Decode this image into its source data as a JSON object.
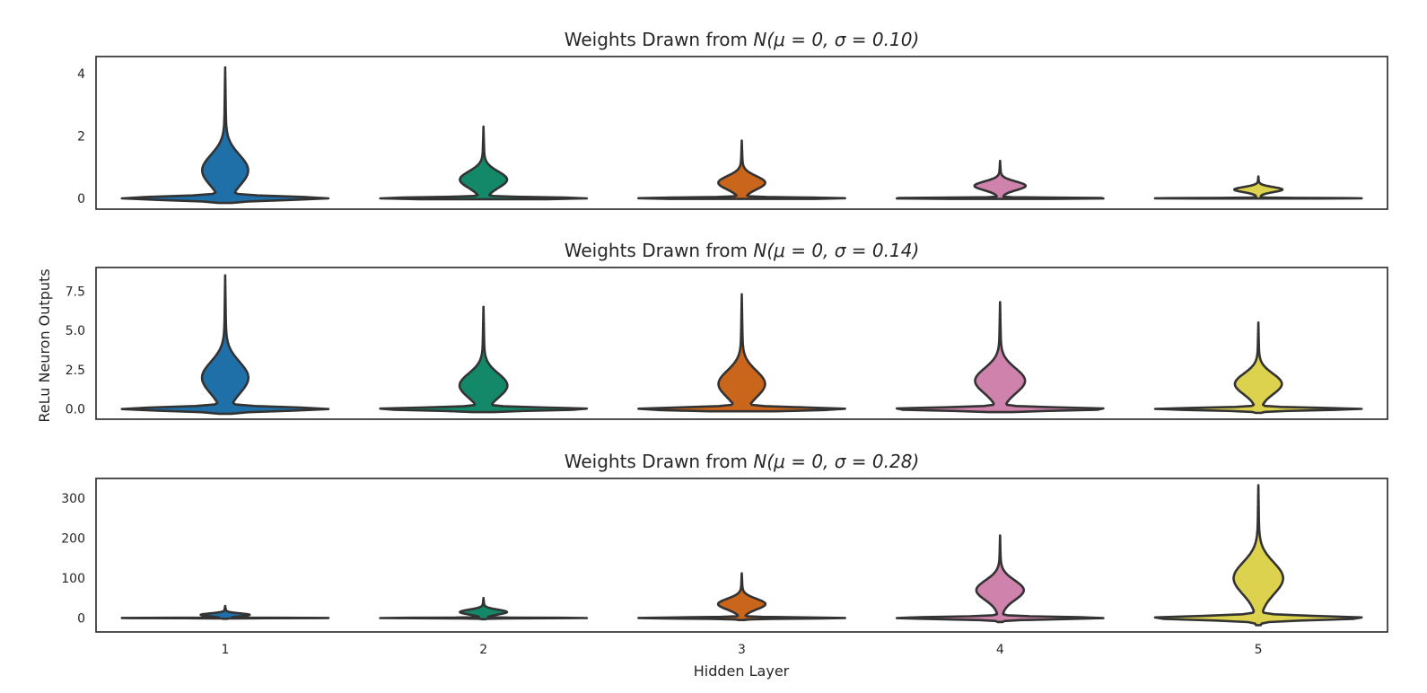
{
  "chart_data": {
    "type": "violin",
    "xlabel": "Hidden Layer",
    "ylabel": "ReLu Neuron Outputs",
    "categories": [
      "1",
      "2",
      "3",
      "4",
      "5"
    ],
    "colors": [
      "#1f6fa8",
      "#13896a",
      "#c9661c",
      "#cf82ac",
      "#ddd24e"
    ],
    "panels": [
      {
        "title_prefix": "Weights Drawn from ",
        "title_math": "N(μ = 0, σ = 0.10)",
        "ylim": [
          -0.35,
          4.55
        ],
        "yticks": [
          0,
          2,
          4
        ],
        "ytick_labels": [
          "0",
          "2",
          "4"
        ],
        "violins": [
          {
            "max": 4.2,
            "mid": 0.9,
            "min": -0.15
          },
          {
            "max": 2.3,
            "mid": 0.6,
            "min": -0.03
          },
          {
            "max": 1.85,
            "mid": 0.5,
            "min": -0.02
          },
          {
            "max": 1.2,
            "mid": 0.4,
            "min": -0.02
          },
          {
            "max": 0.7,
            "mid": 0.28,
            "min": -0.01
          }
        ]
      },
      {
        "title_prefix": "Weights Drawn from ",
        "title_math": "N(μ = 0, σ = 0.14)",
        "ylim": [
          -0.65,
          9.0
        ],
        "yticks": [
          0,
          2.5,
          5,
          7.5
        ],
        "ytick_labels": [
          "0.0",
          "2.5",
          "5.0",
          "7.5"
        ],
        "violins": [
          {
            "max": 8.5,
            "mid": 2.0,
            "min": -0.3
          },
          {
            "max": 6.5,
            "mid": 1.5,
            "min": -0.2
          },
          {
            "max": 7.3,
            "mid": 1.6,
            "min": -0.15
          },
          {
            "max": 6.8,
            "mid": 1.8,
            "min": -0.2
          },
          {
            "max": 5.5,
            "mid": 1.6,
            "min": -0.25
          }
        ]
      },
      {
        "title_prefix": "Weights Drawn from ",
        "title_math": "N(μ = 0, σ = 0.28)",
        "ylim": [
          -35,
          350
        ],
        "yticks": [
          0,
          100,
          200,
          300
        ],
        "ytick_labels": [
          "0",
          "100",
          "200",
          "300"
        ],
        "violins": [
          {
            "max": 30,
            "mid": 8,
            "min": -2
          },
          {
            "max": 50,
            "mid": 15,
            "min": -3
          },
          {
            "max": 112,
            "mid": 35,
            "min": -5
          },
          {
            "max": 207,
            "mid": 70,
            "min": -10
          },
          {
            "max": 333,
            "mid": 100,
            "min": -18
          }
        ]
      }
    ]
  }
}
